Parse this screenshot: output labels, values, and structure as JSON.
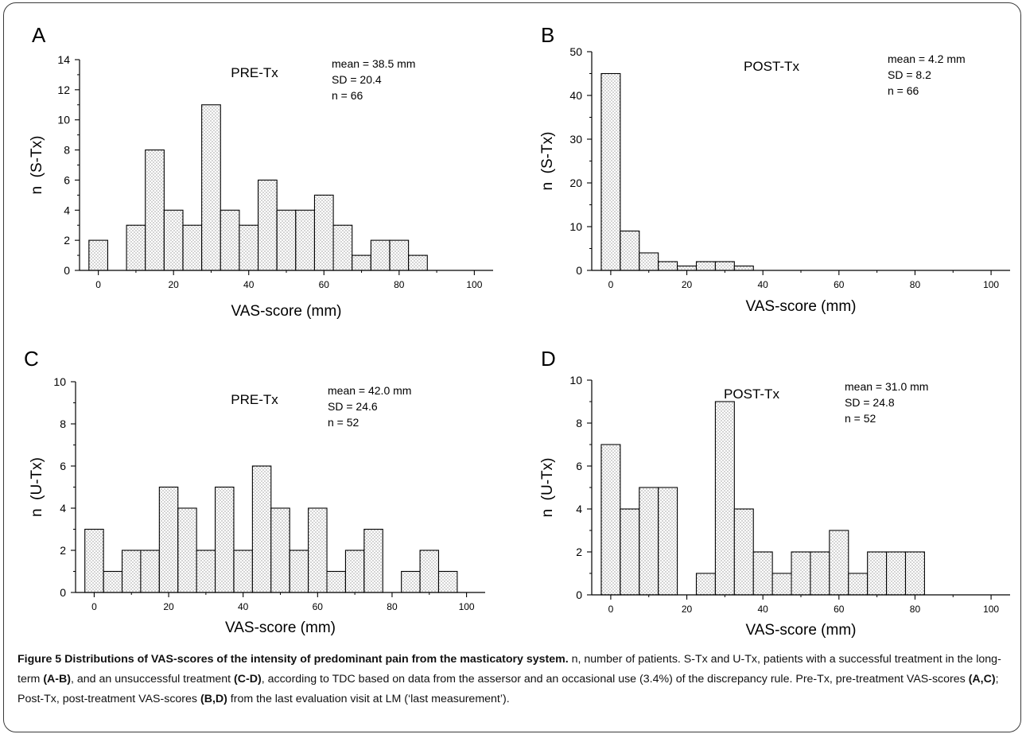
{
  "chart_data": [
    {
      "panel_label": "A",
      "type": "bar",
      "title": "PRE-Tx",
      "stats": [
        "mean = 38.5 mm",
        "SD = 20.4",
        "n = 66"
      ],
      "xlabel": "VAS-score (mm)",
      "ylabel": "n  (S-Tx)",
      "xlim": [
        -5,
        105
      ],
      "ylim": [
        0,
        14
      ],
      "xticks": [
        0,
        20,
        40,
        60,
        80,
        100
      ],
      "yticks": [
        0,
        2,
        4,
        6,
        8,
        10,
        12,
        14
      ],
      "bin_width": 5,
      "bin_centers": [
        0,
        5,
        10,
        15,
        20,
        25,
        30,
        35,
        40,
        45,
        50,
        55,
        60,
        65,
        70,
        75,
        80,
        85,
        90,
        95,
        100
      ],
      "values": [
        2,
        0,
        3,
        8,
        4,
        3,
        11,
        4,
        3,
        6,
        4,
        4,
        5,
        3,
        1,
        2,
        2,
        1,
        0,
        0,
        0
      ]
    },
    {
      "panel_label": "B",
      "type": "bar",
      "title": "POST-Tx",
      "stats": [
        "mean = 4.2 mm",
        "SD = 8.2",
        "n = 66"
      ],
      "xlabel": "VAS-score (mm)",
      "ylabel": "n  (S-Tx)",
      "xlim": [
        -5,
        105
      ],
      "ylim": [
        0,
        50
      ],
      "xticks": [
        0,
        20,
        40,
        60,
        80,
        100
      ],
      "yticks": [
        0,
        10,
        20,
        30,
        40,
        50
      ],
      "bin_width": 5,
      "bin_centers": [
        0,
        5,
        10,
        15,
        20,
        25,
        30,
        35,
        40,
        45,
        50,
        55,
        60,
        65,
        70,
        75,
        80,
        85,
        90,
        95,
        100
      ],
      "values": [
        45,
        9,
        4,
        2,
        1,
        2,
        2,
        1,
        0,
        0,
        0,
        0,
        0,
        0,
        0,
        0,
        0,
        0,
        0,
        0,
        0
      ]
    },
    {
      "panel_label": "C",
      "type": "bar",
      "title": "PRE-Tx",
      "stats": [
        "mean = 42.0 mm",
        "SD = 24.6",
        "n = 52"
      ],
      "xlabel": "VAS-score (mm)",
      "ylabel": "n  (U-Tx)",
      "xlim": [
        -5,
        105
      ],
      "ylim": [
        0,
        10
      ],
      "xticks": [
        0,
        20,
        40,
        60,
        80,
        100
      ],
      "yticks": [
        0,
        2,
        4,
        6,
        8,
        10
      ],
      "bin_width": 5,
      "bin_centers": [
        0,
        5,
        10,
        15,
        20,
        25,
        30,
        35,
        40,
        45,
        50,
        55,
        60,
        65,
        70,
        75,
        80,
        85,
        90,
        95,
        100
      ],
      "values": [
        3,
        1,
        2,
        2,
        5,
        4,
        2,
        5,
        2,
        6,
        4,
        2,
        4,
        1,
        2,
        3,
        0,
        1,
        2,
        1,
        0
      ]
    },
    {
      "panel_label": "D",
      "type": "bar",
      "title": "POST-Tx",
      "stats": [
        "mean = 31.0 mm",
        "SD = 24.8",
        "n = 52"
      ],
      "xlabel": "VAS-score (mm)",
      "ylabel": "n  (U-Tx)",
      "xlim": [
        -5,
        105
      ],
      "ylim": [
        0,
        10
      ],
      "xticks": [
        0,
        20,
        40,
        60,
        80,
        100
      ],
      "yticks": [
        0,
        2,
        4,
        6,
        8,
        10
      ],
      "bin_width": 5,
      "bin_centers": [
        0,
        5,
        10,
        15,
        20,
        25,
        30,
        35,
        40,
        45,
        50,
        55,
        60,
        65,
        70,
        75,
        80,
        85,
        90,
        95,
        100
      ],
      "values": [
        7,
        4,
        5,
        5,
        0,
        1,
        9,
        4,
        2,
        1,
        2,
        2,
        3,
        1,
        2,
        2,
        2,
        0,
        0,
        0,
        0
      ]
    }
  ],
  "caption": {
    "figure_label": "Figure 5",
    "title": "Distributions of VAS-scores of the intensity of predominant pain from the masticatory system.",
    "segments": [
      {
        "t": " n, number of patients. S-Tx and U-Tx, patients with a successful treatment in the long-term ",
        "b": false
      },
      {
        "t": "(A-B)",
        "b": true
      },
      {
        "t": ", and an unsuccessful treatment ",
        "b": false
      },
      {
        "t": "(C-D)",
        "b": true
      },
      {
        "t": ", according to TDC based on data from the assersor and an occasional use (3.4%) of the discrepancy rule. Pre-Tx, pre-treatment VAS-scores ",
        "b": false
      },
      {
        "t": "(A,C)",
        "b": true
      },
      {
        "t": "; Post-Tx, post-treatment VAS-scores ",
        "b": false
      },
      {
        "t": "(B,D)",
        "b": true
      },
      {
        "t": " from the last evaluation visit at LM (‘last measurement’).",
        "b": false
      }
    ]
  }
}
